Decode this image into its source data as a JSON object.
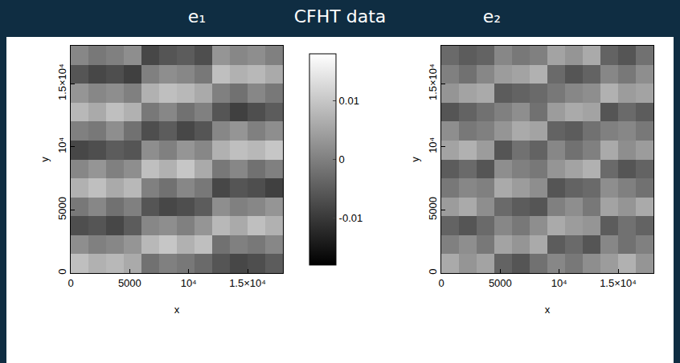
{
  "title": "CFHT data",
  "chart_data": [
    {
      "type": "heatmap",
      "title": "e₁",
      "x_label": "x",
      "y_label": "y",
      "x": [
        750,
        2250,
        3750,
        5250,
        6750,
        8250,
        9750,
        11250,
        12750,
        14250,
        15750,
        17250
      ],
      "y": [
        750,
        2250,
        3750,
        5250,
        6750,
        8250,
        9750,
        11250,
        12750,
        14250,
        15750,
        17250
      ],
      "xlim": [
        0,
        18000
      ],
      "ylim": [
        0,
        18000
      ],
      "xticks": [
        0,
        5000,
        {
          "value": 10000,
          "label": "10⁴"
        },
        {
          "value": 15000,
          "label": "1.5×10⁴"
        }
      ],
      "yticks": [
        0,
        5000,
        {
          "value": 10000,
          "label": "10⁴"
        },
        {
          "value": 15000,
          "label": "1.5×10⁴"
        }
      ],
      "zlim": [
        -0.018,
        0.018
      ],
      "zticks": [
        -0.01,
        0,
        0.01
      ],
      "cells": [
        [
          0.009,
          0.007,
          0.008,
          0.006,
          -0.002,
          0.0,
          -0.001,
          -0.003,
          -0.006,
          -0.008,
          -0.007,
          -0.005
        ],
        [
          0.002,
          0.0,
          0.001,
          0.003,
          0.008,
          0.01,
          0.007,
          0.009,
          -0.002,
          0.0,
          -0.001,
          0.001
        ],
        [
          -0.007,
          -0.006,
          -0.008,
          -0.005,
          0.001,
          0.002,
          0.0,
          0.003,
          0.008,
          0.006,
          0.009,
          0.007
        ],
        [
          -0.001,
          0.001,
          -0.002,
          0.0,
          -0.006,
          -0.008,
          -0.007,
          -0.005,
          0.002,
          0.0,
          0.001,
          0.003
        ],
        [
          0.007,
          0.009,
          0.006,
          0.008,
          0.0,
          -0.002,
          0.001,
          -0.001,
          -0.008,
          -0.006,
          -0.007,
          -0.009
        ],
        [
          0.001,
          0.003,
          0.0,
          0.002,
          0.009,
          0.007,
          0.01,
          0.006,
          -0.001,
          0.001,
          -0.002,
          0.0
        ],
        [
          -0.008,
          -0.007,
          -0.005,
          -0.006,
          0.002,
          0.0,
          0.003,
          0.001,
          0.007,
          0.009,
          0.008,
          0.01
        ],
        [
          0.0,
          -0.001,
          0.002,
          -0.002,
          -0.007,
          -0.005,
          -0.008,
          -0.006,
          0.001,
          0.003,
          0.0,
          0.002
        ],
        [
          0.008,
          0.006,
          0.009,
          0.007,
          -0.001,
          0.001,
          -0.002,
          0.0,
          -0.006,
          -0.009,
          -0.007,
          -0.005
        ],
        [
          0.003,
          0.001,
          0.002,
          0.0,
          0.007,
          0.009,
          0.008,
          0.006,
          0.0,
          -0.002,
          0.001,
          -0.001
        ],
        [
          -0.006,
          -0.008,
          -0.007,
          -0.009,
          0.0,
          0.002,
          0.001,
          -0.001,
          0.009,
          0.007,
          0.008,
          0.006
        ],
        [
          0.001,
          -0.001,
          0.0,
          0.002,
          -0.008,
          -0.006,
          -0.005,
          -0.007,
          0.003,
          0.001,
          0.002,
          0.0
        ]
      ]
    },
    {
      "type": "heatmap",
      "title": "e₂",
      "x_label": "x",
      "y_label": "y",
      "x": [
        750,
        2250,
        3750,
        5250,
        6750,
        8250,
        9750,
        11250,
        12750,
        14250,
        15750,
        17250
      ],
      "y": [
        750,
        2250,
        3750,
        5250,
        6750,
        8250,
        9750,
        11250,
        12750,
        14250,
        15750,
        17250
      ],
      "xlim": [
        0,
        18000
      ],
      "ylim": [
        0,
        18000
      ],
      "xticks": [
        0,
        5000,
        {
          "value": 10000,
          "label": "10⁴"
        },
        {
          "value": 15000,
          "label": "1.5×10⁴"
        }
      ],
      "yticks": [
        0,
        5000,
        {
          "value": 10000,
          "label": "10⁴"
        },
        {
          "value": 15000,
          "label": "1.5×10⁴"
        }
      ],
      "zlim": [
        -0.018,
        0.018
      ],
      "cells": [
        [
          0.006,
          0.003,
          0.005,
          -0.004,
          -0.006,
          -0.002,
          0.001,
          -0.001,
          0.002,
          0.004,
          0.007,
          0.003
        ],
        [
          0.0,
          0.002,
          -0.001,
          0.005,
          0.003,
          0.006,
          -0.005,
          -0.003,
          -0.006,
          0.001,
          -0.002,
          0.0
        ],
        [
          -0.004,
          -0.006,
          -0.003,
          0.001,
          -0.001,
          0.002,
          0.006,
          0.004,
          0.003,
          -0.005,
          -0.002,
          -0.004
        ],
        [
          0.004,
          0.006,
          0.002,
          -0.003,
          -0.005,
          -0.006,
          0.0,
          0.002,
          -0.001,
          0.005,
          0.003,
          0.006
        ],
        [
          -0.001,
          0.001,
          0.0,
          0.006,
          0.004,
          0.002,
          -0.006,
          -0.004,
          -0.003,
          0.002,
          0.0,
          -0.002
        ],
        [
          -0.005,
          -0.003,
          -0.006,
          0.002,
          0.0,
          -0.001,
          0.003,
          0.005,
          0.007,
          -0.003,
          -0.006,
          -0.004
        ],
        [
          0.005,
          0.007,
          0.004,
          -0.006,
          -0.002,
          -0.004,
          0.001,
          -0.002,
          0.0,
          0.006,
          0.002,
          0.004
        ],
        [
          0.002,
          -0.001,
          0.0,
          0.003,
          0.006,
          0.005,
          -0.004,
          -0.005,
          -0.002,
          0.0,
          0.001,
          -0.001
        ],
        [
          -0.006,
          -0.004,
          -0.002,
          0.0,
          0.002,
          -0.002,
          0.004,
          0.006,
          0.005,
          -0.006,
          -0.003,
          -0.005
        ],
        [
          0.003,
          0.005,
          0.006,
          -0.005,
          -0.004,
          -0.003,
          -0.001,
          0.001,
          0.002,
          0.007,
          0.004,
          0.005
        ],
        [
          0.0,
          -0.002,
          0.001,
          0.004,
          0.005,
          0.007,
          -0.003,
          -0.006,
          -0.004,
          0.001,
          -0.001,
          0.002
        ],
        [
          -0.003,
          -0.005,
          -0.004,
          0.001,
          -0.001,
          0.0,
          0.005,
          0.003,
          0.006,
          -0.004,
          -0.006,
          -0.002
        ]
      ]
    }
  ]
}
